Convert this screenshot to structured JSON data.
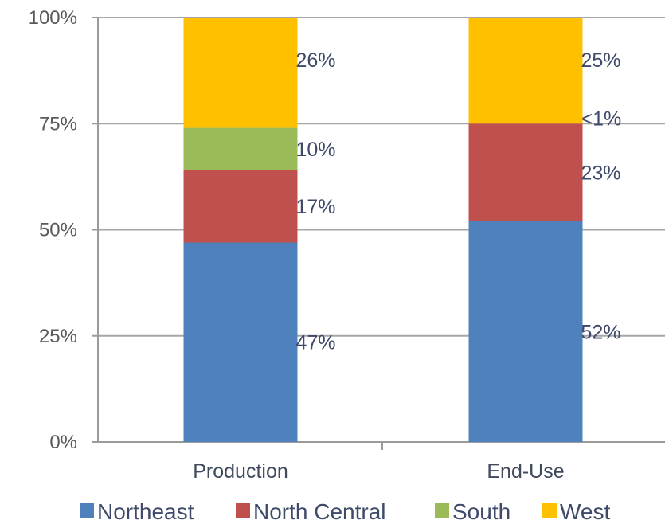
{
  "chart_data": {
    "type": "bar",
    "stacked": true,
    "categories": [
      "Production",
      "End-Use"
    ],
    "series": [
      {
        "name": "Northeast",
        "color": "#4f81bd",
        "values": [
          47,
          52
        ],
        "labels": [
          "47%",
          "52%"
        ]
      },
      {
        "name": "North Central",
        "color": "#c0504d",
        "values": [
          17,
          23
        ],
        "labels": [
          "17%",
          "23%"
        ]
      },
      {
        "name": "South",
        "color": "#9bbb59",
        "values": [
          10,
          0
        ],
        "labels": [
          "10%",
          "<1%"
        ]
      },
      {
        "name": "West",
        "color": "#ffc000",
        "values": [
          26,
          25
        ],
        "labels": [
          "26%",
          "25%"
        ]
      }
    ],
    "ylim": [
      0,
      100
    ],
    "yticks": [
      "0%",
      "25%",
      "50%",
      "75%",
      "100%"
    ],
    "grid": true,
    "legend_position": "bottom"
  }
}
